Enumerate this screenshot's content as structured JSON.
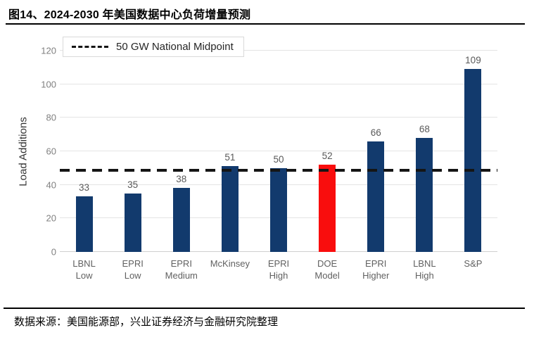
{
  "header": {
    "title": "图14、2024-2030 年美国数据中心负荷增量预测"
  },
  "footer": {
    "source": "数据来源：美国能源部，兴业证券经济与金融研究院整理"
  },
  "chart_data": {
    "type": "bar",
    "title": "",
    "xlabel": "",
    "ylabel": "Load Additions",
    "ylim": [
      0,
      120
    ],
    "yticks": [
      0,
      20,
      40,
      60,
      80,
      100,
      120
    ],
    "grid": true,
    "legend": {
      "label": "50 GW National Midpoint",
      "position": "top-left",
      "style": "dashed-line"
    },
    "reference_line": {
      "value": 50,
      "style": "dashed",
      "color": "#151515"
    },
    "categories": [
      "LBNL\nLow",
      "EPRI\nLow",
      "EPRI\nMedium",
      "McKinsey",
      "EPRI\nHigh",
      "DOE\nModel",
      "EPRI\nHigher",
      "LBNL\nHigh",
      "S&P"
    ],
    "values": [
      33,
      35,
      38,
      51,
      50,
      52,
      66,
      68,
      109
    ],
    "highlight_index": 5,
    "colors": {
      "bar": "#123a6d",
      "highlight_bar": "#f90d0d",
      "grid": "#e4e4e4",
      "tick_label": "#808080",
      "value_label": "#595959",
      "reference_line": "#151515"
    }
  }
}
